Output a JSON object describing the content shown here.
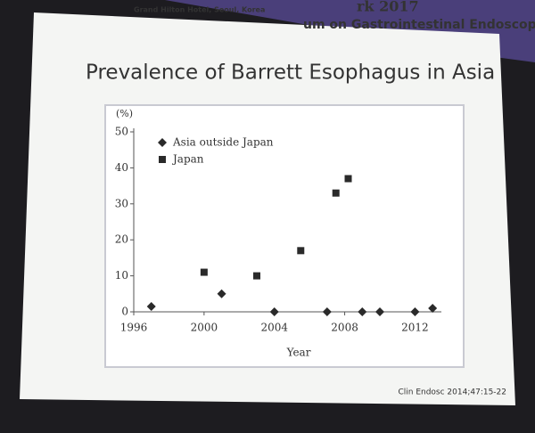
{
  "slide": {
    "header": [
      "rk 2017",
      "Grand Hilton Hotel, Seoul, Korea",
      "um on Gastrointestinal Endoscopy"
    ],
    "source": "Clin Endosc 2014;47:15-22"
  },
  "chart_data": {
    "type": "scatter",
    "title": "Prevalence of Barrett Esophagus in Asia",
    "y_label": "(%)",
    "x_label": "Year",
    "xlim": [
      1996,
      2013.5
    ],
    "xticks": [
      1996,
      2000,
      2004,
      2008,
      2012
    ],
    "ylim": [
      0,
      50
    ],
    "yticks": [
      0,
      10,
      20,
      30,
      40,
      50
    ],
    "legend": "upper left",
    "series": [
      {
        "name": "Asia outside Japan",
        "color": "#2a2a2a",
        "marker": "diamond",
        "x": [
          1997,
          2001,
          2004,
          2007,
          2009,
          2010,
          2012,
          2013
        ],
        "values": [
          1.5,
          5,
          0,
          0,
          0,
          0,
          0,
          1
        ]
      },
      {
        "name": "Japan",
        "color": "#2a2a2a",
        "marker": "square",
        "x": [
          2000,
          2003,
          2005.5,
          2007.5,
          2008.2
        ],
        "values": [
          11,
          10,
          17,
          33,
          37
        ]
      }
    ]
  }
}
